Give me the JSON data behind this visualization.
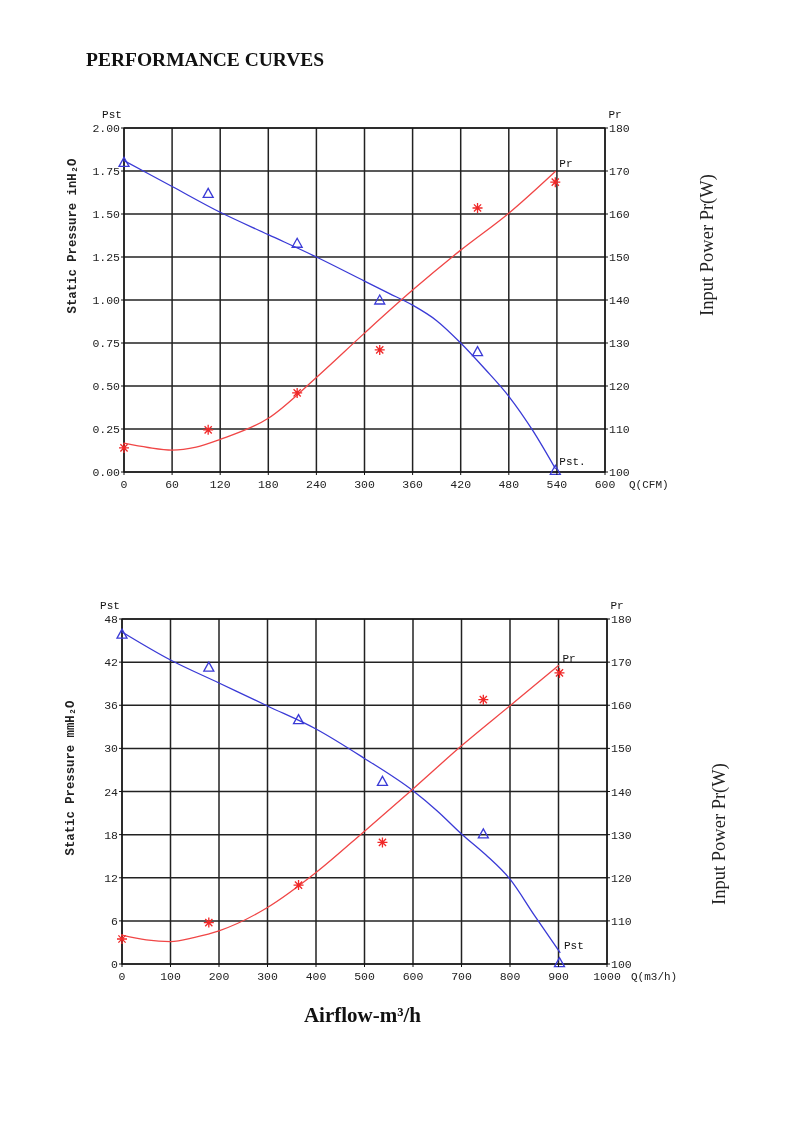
{
  "chart_data": [
    {
      "type": "line",
      "title": "PERFORMANCE CURVES",
      "xlabel": "Q(CFM)",
      "ylabel": "Static Pressure inH₂O",
      "y2label": "Input Power Pr(W)",
      "xlim": [
        0,
        600
      ],
      "xticks": [
        0,
        60,
        120,
        180,
        240,
        300,
        360,
        420,
        480,
        540,
        600
      ],
      "ylim": [
        0,
        2
      ],
      "yticks": [
        {
          "value": 0,
          "label": "0.00"
        },
        {
          "value": 0.25,
          "label": "0.25"
        },
        {
          "value": 0.5,
          "label": "0.50"
        },
        {
          "value": 0.75,
          "label": "0.75"
        },
        {
          "value": 1,
          "label": "1.00"
        },
        {
          "value": 1.25,
          "label": "1.25"
        },
        {
          "value": 1.5,
          "label": "1.50"
        },
        {
          "value": 1.75,
          "label": "1.75"
        },
        {
          "value": 2,
          "label": "2.00"
        }
      ],
      "y2lim": [
        100,
        180
      ],
      "y2ticks": [
        100,
        110,
        120,
        130,
        140,
        150,
        160,
        170,
        180
      ],
      "grid": true,
      "annotations": [
        "Pst",
        "Pr"
      ],
      "series": [
        {
          "name": "Pst.",
          "color": "#3a3ad6",
          "x": [
            0,
            60,
            120,
            180,
            240,
            300,
            330,
            360,
            390,
            420,
            450,
            480,
            510,
            538
          ],
          "values": [
            1.81,
            1.66,
            1.51,
            1.38,
            1.25,
            1.11,
            1.04,
            0.97,
            0.88,
            0.75,
            0.6,
            0.44,
            0.24,
            0.02
          ]
        },
        {
          "type": "scatter",
          "marker": "triangle",
          "color": "#3a3ad6",
          "x": [
            0,
            105,
            216,
            319,
            441,
            538
          ],
          "values": [
            1.8,
            1.62,
            1.33,
            1.0,
            0.7,
            0.01
          ]
        },
        {
          "name": "Pr",
          "axis": "y2",
          "color": "#f04646",
          "x": [
            0,
            30,
            60,
            90,
            120,
            180,
            240,
            300,
            360,
            420,
            480,
            538
          ],
          "values": [
            106.7,
            105.7,
            105.1,
            105.8,
            107.6,
            112.5,
            122,
            132.3,
            142.3,
            151.6,
            160.2,
            169.9
          ]
        },
        {
          "type": "scatter",
          "marker": "cross",
          "axis": "y2",
          "color": "#f02828",
          "x": [
            0,
            105,
            216,
            319,
            441,
            538
          ],
          "values": [
            105.6,
            109.8,
            118.4,
            128.4,
            161.4,
            167.4
          ]
        }
      ]
    },
    {
      "type": "line",
      "xlabel": "Q(m3/h)",
      "ylabel": "Static Pressure mmH₂O",
      "y2label": "Input Power Pr(W)",
      "xlim": [
        0,
        1000
      ],
      "xticks": [
        0,
        100,
        200,
        300,
        400,
        500,
        600,
        700,
        800,
        900,
        1000
      ],
      "ylim": [
        0,
        48
      ],
      "yticks": [
        0,
        6,
        12,
        18,
        24,
        30,
        36,
        42,
        48
      ],
      "y2lim": [
        100,
        180
      ],
      "y2ticks": [
        100,
        110,
        120,
        130,
        140,
        150,
        160,
        170,
        180
      ],
      "grid": true,
      "annotations": [
        "Pst",
        "Pr",
        "Airflow-m³/h"
      ],
      "series": [
        {
          "name": "Pst",
          "color": "#3a3ad6",
          "x": [
            0,
            100,
            200,
            300,
            400,
            500,
            600,
            650,
            700,
            750,
            800,
            850,
            903
          ],
          "values": [
            46.2,
            42.3,
            39.1,
            35.9,
            32.7,
            28.6,
            24.1,
            21.3,
            18.1,
            15.2,
            11.8,
            6.8,
            1.6
          ]
        },
        {
          "type": "scatter",
          "marker": "triangle",
          "color": "#3a3ad6",
          "x": [
            0,
            179,
            364,
            537,
            745,
            902
          ],
          "values": [
            45.9,
            41.3,
            34.0,
            25.4,
            18.1,
            0.2
          ]
        },
        {
          "name": "Pr",
          "axis": "y2",
          "color": "#f04646",
          "x": [
            0,
            50,
            100,
            150,
            200,
            300,
            400,
            500,
            600,
            700,
            800,
            900
          ],
          "values": [
            106.7,
            105.6,
            105.2,
            106.2,
            107.7,
            113.1,
            121.2,
            130.8,
            140.6,
            150.6,
            159.9,
            169.2
          ]
        },
        {
          "type": "scatter",
          "marker": "cross",
          "axis": "y2",
          "color": "#f02828",
          "x": [
            0,
            179,
            364,
            537,
            745,
            902
          ],
          "values": [
            105.8,
            109.6,
            118.3,
            128.2,
            161.3,
            167.5
          ]
        }
      ]
    }
  ]
}
